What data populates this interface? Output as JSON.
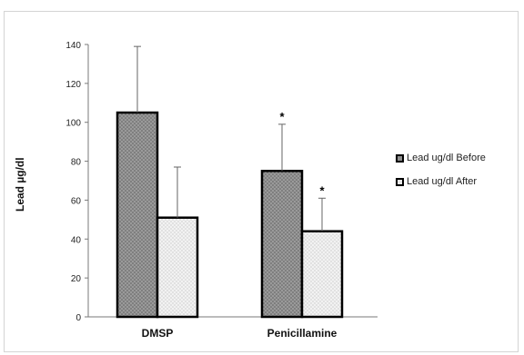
{
  "chart_data": {
    "type": "bar",
    "title": "",
    "xlabel": "",
    "ylabel": "Lead µg/dl",
    "ylim": [
      0,
      140
    ],
    "yticks": [
      0,
      20,
      40,
      60,
      80,
      100,
      120,
      140
    ],
    "categories": [
      "DMSP",
      "Penicillamine"
    ],
    "series": [
      {
        "name": "Lead ug/dl Before",
        "values": [
          105,
          75
        ],
        "error": [
          34,
          24
        ],
        "fill": "dark-stipple"
      },
      {
        "name": "Lead ug/dl After",
        "values": [
          51,
          44
        ],
        "error": [
          26,
          17
        ],
        "fill": "light-stipple"
      }
    ],
    "significance_marker": "*",
    "significant": [
      [
        false,
        true
      ],
      [
        false,
        true
      ]
    ],
    "legend_position": "right",
    "grid": false
  },
  "colors": {
    "bar_before": "#8f8f8f",
    "bar_after": "#e8e8e8",
    "border": "#000000",
    "axis": "#7a7a7a"
  }
}
